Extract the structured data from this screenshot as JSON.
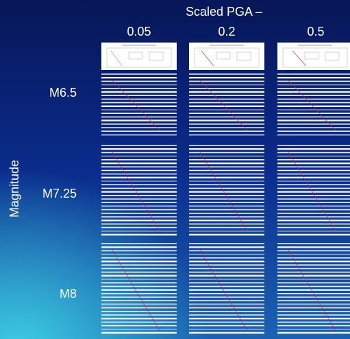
{
  "header": {
    "title": "Scaled PGA –",
    "columns": [
      "0.05",
      "0.2",
      "0.5"
    ]
  },
  "rows": {
    "axis_label": "Magnitude",
    "labels": [
      "M6.5",
      "M7.25",
      "M8"
    ]
  }
}
